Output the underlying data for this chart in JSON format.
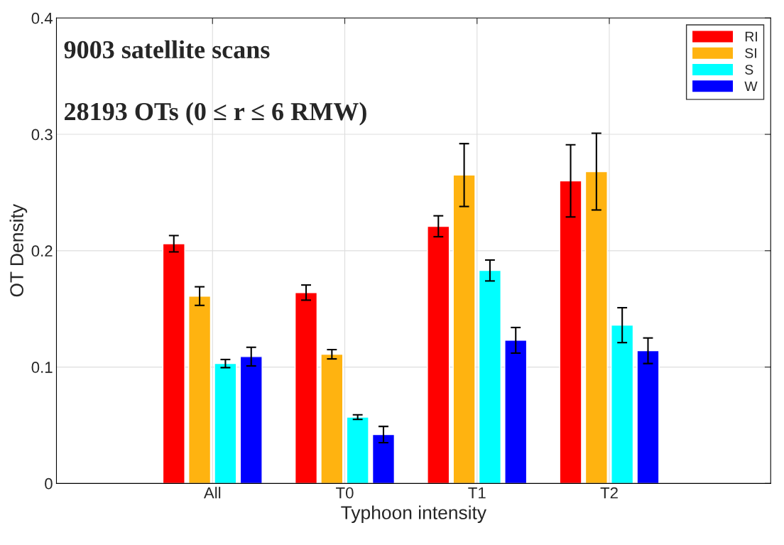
{
  "chart_data": {
    "type": "bar",
    "xlabel": "Typhoon intensity",
    "ylabel": "OT Density",
    "categories": [
      "All",
      "T0",
      "T1",
      "T2"
    ],
    "series": [
      {
        "name": "RI",
        "color": "#ff0000",
        "values": [
          0.206,
          0.164,
          0.221,
          0.26
        ],
        "errors": [
          0.007,
          0.0065,
          0.009,
          0.031
        ]
      },
      {
        "name": "SI",
        "color": "#ffb310",
        "values": [
          0.161,
          0.111,
          0.265,
          0.268
        ],
        "errors": [
          0.008,
          0.004,
          0.027,
          0.033
        ]
      },
      {
        "name": "S",
        "color": "#00ffff",
        "values": [
          0.103,
          0.057,
          0.183,
          0.136
        ],
        "errors": [
          0.0035,
          0.002,
          0.009,
          0.015
        ]
      },
      {
        "name": "W",
        "color": "#0000ff",
        "values": [
          0.109,
          0.042,
          0.123,
          0.114
        ],
        "errors": [
          0.008,
          0.007,
          0.011,
          0.011
        ]
      }
    ],
    "ylim": [
      0,
      0.4
    ],
    "yticks": [
      0,
      0.1,
      0.2,
      0.3,
      0.4
    ],
    "grid": true,
    "legend": "top right",
    "annotations": [
      "9003 satellite scans",
      "28193 OTs (0 ≤ r ≤ 6 RMW)"
    ]
  }
}
